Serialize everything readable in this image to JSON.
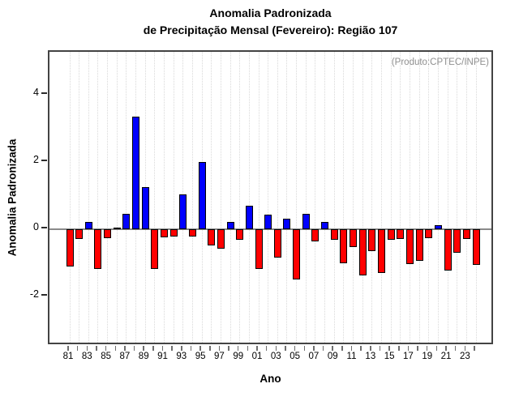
{
  "header": {
    "title_line1": "Anomalia Padronizada",
    "title_line2": "de Precipitação Mensal (Fevereiro): Região 107"
  },
  "plot": {
    "annotation": "(Produto:CPTEC/INPE)",
    "xlabel": "Ano",
    "ylabel": "Anomalia Padronizada"
  },
  "chart_data": {
    "type": "bar",
    "title": "Anomalia Padronizada de Precipitação Mensal (Fevereiro): Região 107",
    "xlabel": "Ano",
    "ylabel": "Anomalia Padronizada",
    "annotation": "(Produto:CPTEC/INPE)",
    "categories": [
      "81",
      "82",
      "83",
      "84",
      "85",
      "86",
      "87",
      "88",
      "89",
      "90",
      "91",
      "92",
      "93",
      "94",
      "95",
      "96",
      "97",
      "98",
      "99",
      "00",
      "01",
      "02",
      "03",
      "04",
      "05",
      "06",
      "07",
      "08",
      "09",
      "10",
      "11",
      "12",
      "13",
      "14",
      "15",
      "16",
      "17",
      "18",
      "19",
      "20",
      "21",
      "22",
      "23",
      "24"
    ],
    "values": [
      -1.1,
      -0.28,
      0.23,
      -1.17,
      -0.25,
      0.04,
      0.46,
      3.35,
      1.25,
      -1.17,
      -0.24,
      -0.2,
      1.05,
      -0.2,
      2.0,
      -0.47,
      -0.58,
      0.22,
      -0.3,
      0.71,
      -1.17,
      0.43,
      -0.84,
      0.33,
      -1.48,
      0.47,
      -0.35,
      0.23,
      -0.31,
      -1.01,
      -0.52,
      -1.36,
      -0.64,
      -1.29,
      -0.31,
      -0.27,
      -1.04,
      -0.93,
      -0.25,
      0.13,
      -1.22,
      -0.69,
      -0.27,
      -1.05
    ],
    "x_tick_labels_shown": [
      "81",
      "83",
      "85",
      "87",
      "89",
      "91",
      "93",
      "95",
      "97",
      "99",
      "01",
      "03",
      "05",
      "07",
      "09",
      "11",
      "13",
      "15",
      "17",
      "19",
      "21",
      "23"
    ],
    "y_ticks": [
      -2,
      0,
      2,
      4
    ],
    "ylim": [
      -3.45,
      5.28
    ],
    "grid": "vertical-dotted",
    "legend": "none",
    "positive_color": "#0000ff",
    "negative_color": "#ff0000",
    "zero_line_color": "#8a8a8a",
    "grid_color": "#d9d9d9",
    "annotation_color": "#8f8f8f"
  }
}
